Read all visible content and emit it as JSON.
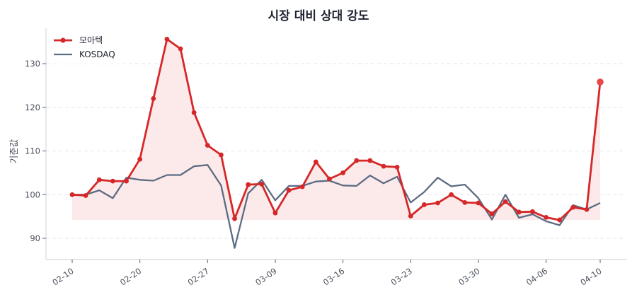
{
  "chart_data": {
    "type": "line",
    "title": "시장 대비 상대 강도",
    "xlabel": "",
    "ylabel": "기준값",
    "ylim": [
      85.5,
      138
    ],
    "yticks": [
      90,
      100,
      110,
      120,
      130
    ],
    "xtick_labels": [
      "02-10",
      "02-20",
      "02-27",
      "03-09",
      "03-16",
      "03-23",
      "03-30",
      "04-06",
      "04-10"
    ],
    "xtick_indices": [
      0,
      5,
      10,
      15,
      20,
      25,
      30,
      35,
      39
    ],
    "grid": "horizontal dashed",
    "legend_position": "upper left",
    "fill_baseline": 94.2,
    "series": [
      {
        "name": "모아텍",
        "color": "#d62728",
        "markers": true,
        "values": [
          100.0,
          99.8,
          103.4,
          103.1,
          103.1,
          108.1,
          122.0,
          135.6,
          133.4,
          118.8,
          111.3,
          109.1,
          94.5,
          102.3,
          102.4,
          95.8,
          101.0,
          101.8,
          107.5,
          103.6,
          105.0,
          107.8,
          107.8,
          106.5,
          106.3,
          95.1,
          97.7,
          98.1,
          100.0,
          98.2,
          98.1,
          95.6,
          98.4,
          96.0,
          96.1,
          94.8,
          94.2,
          97.1,
          96.6,
          125.8
        ]
      },
      {
        "name": "KOSDAQ",
        "color": "#5c6b82",
        "markers": false,
        "values": [
          100.0,
          100.0,
          101.0,
          99.2,
          103.9,
          103.4,
          103.2,
          104.5,
          104.5,
          106.5,
          106.8,
          102.1,
          87.8,
          100.3,
          103.4,
          98.7,
          102.0,
          102.0,
          103.0,
          103.2,
          102.1,
          102.0,
          104.4,
          102.6,
          104.1,
          98.2,
          100.6,
          103.9,
          101.9,
          102.3,
          99.2,
          94.3,
          100.0,
          94.7,
          95.5,
          93.9,
          93.0,
          97.6,
          96.6,
          98.1
        ]
      }
    ]
  },
  "legend": {
    "items": [
      {
        "label": "모아텍"
      },
      {
        "label": "KOSDAQ"
      }
    ]
  },
  "colors": {
    "accent": "#d62728",
    "index": "#5c6b82",
    "fill": "#fbe6e6",
    "grid": "#e3e5ea",
    "axis": "#d5d8df"
  }
}
